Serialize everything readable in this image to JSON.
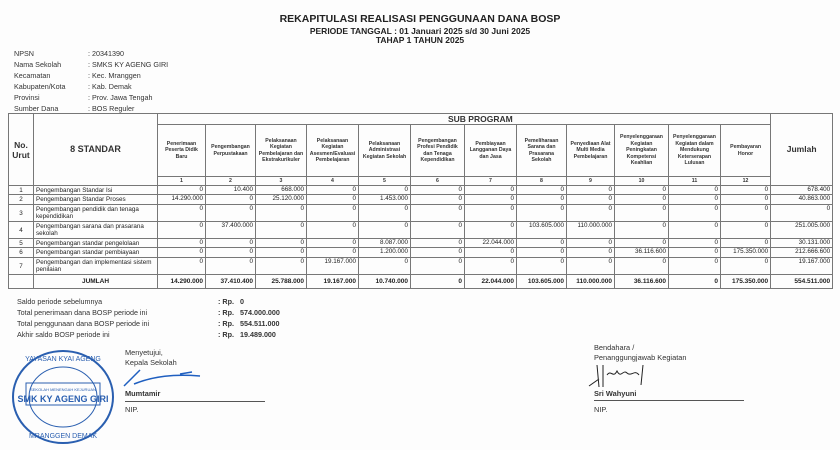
{
  "header": {
    "title": "REKAPITULASI REALISASI PENGGUNAAN DANA BOSP",
    "period": "PERIODE TANGGAL : 01 Januari 2025 s/d 30 Juni 2025",
    "stage": "TAHAP 1 TAHUN 2025"
  },
  "info": [
    {
      "label": "NPSN",
      "value": ": 20341390"
    },
    {
      "label": "Nama Sekolah",
      "value": ": SMKS KY AGENG GIRI"
    },
    {
      "label": "Kecamatan",
      "value": ": Kec. Mranggen"
    },
    {
      "label": "Kabupaten/Kota",
      "value": ": Kab. Demak"
    },
    {
      "label": "Provinsi",
      "value": ": Prov. Jawa Tengah"
    },
    {
      "label": "Sumber Dana",
      "value": ": BOS Reguler"
    }
  ],
  "table": {
    "no_header": "No. Urut",
    "standar_header": "8 STANDAR",
    "sub_program_header": "SUB PROGRAM",
    "jumlah_header": "Jumlah",
    "columns": [
      "Penerimaan Peserta Didik Baru",
      "Pengembangan Perpustakaan",
      "Pelaksanaan Kegiatan Pembelajaran dan Ekstrakurikuler",
      "Pelaksanaan Kegiatan Asesmen/Evaluasi Pembelajaran",
      "Pelaksanaan Administrasi Kegiatan Sekolah",
      "Pengembangan Profesi Pendidik dan Tenaga Kependidikan",
      "Pembiayaan Langganan Daya dan Jasa",
      "Pemeliharaan Sarana dan Prasarana Sekolah",
      "Penyediaan Alat Multi Media Pembelajaran",
      "Penyelenggaraan Kegiatan Peningkatan Kompetensi Keahlian",
      "Penyelenggaraan Kegiatan dalam Mendukung Keterserapan Lulusan",
      "Pembayaran Honor"
    ],
    "column_numbers": [
      "1",
      "2",
      "3",
      "4",
      "5",
      "6",
      "7",
      "8",
      "9",
      "10",
      "11",
      "12"
    ],
    "rows": [
      {
        "no": "1",
        "standar": "Pengembangan Standar Isi",
        "values": [
          "0",
          "10.400",
          "668.000",
          "0",
          "0",
          "0",
          "0",
          "0",
          "0",
          "0",
          "0",
          "0"
        ],
        "jumlah": "678.400"
      },
      {
        "no": "2",
        "standar": "Pengembangan Standar Proses",
        "values": [
          "14.290.000",
          "0",
          "25.120.000",
          "0",
          "1.453.000",
          "0",
          "0",
          "0",
          "0",
          "0",
          "0",
          "0"
        ],
        "jumlah": "40.863.000"
      },
      {
        "no": "3",
        "standar": "Pengembangan pendidik dan tenaga kependidikan",
        "values": [
          "0",
          "0",
          "0",
          "0",
          "0",
          "0",
          "0",
          "0",
          "0",
          "0",
          "0",
          "0"
        ],
        "jumlah": "0"
      },
      {
        "no": "4",
        "standar": "Pengembangan sarana dan prasarana sekolah",
        "values": [
          "0",
          "37.400.000",
          "0",
          "0",
          "0",
          "0",
          "0",
          "103.605.000",
          "110.000.000",
          "0",
          "0",
          "0"
        ],
        "jumlah": "251.005.000"
      },
      {
        "no": "5",
        "standar": "Pengembangan standar pengelolaan",
        "values": [
          "0",
          "0",
          "0",
          "0",
          "8.087.000",
          "0",
          "22.044.000",
          "0",
          "0",
          "0",
          "0",
          "0"
        ],
        "jumlah": "30.131.000"
      },
      {
        "no": "6",
        "standar": "Pengembangan standar pembiayaan",
        "values": [
          "0",
          "0",
          "0",
          "0",
          "1.200.000",
          "0",
          "0",
          "0",
          "0",
          "36.116.600",
          "0",
          "175.350.000"
        ],
        "jumlah": "212.666.600"
      },
      {
        "no": "7",
        "standar": "Pengembangan dan implementasi sistem penilaian",
        "values": [
          "0",
          "0",
          "0",
          "19.167.000",
          "0",
          "0",
          "0",
          "0",
          "0",
          "0",
          "0",
          "0"
        ],
        "jumlah": "19.167.000"
      }
    ],
    "total": {
      "label": "JUMLAH",
      "values": [
        "14.290.000",
        "37.410.400",
        "25.788.000",
        "19.167.000",
        "10.740.000",
        "0",
        "22.044.000",
        "103.605.000",
        "110.000.000",
        "36.116.600",
        "0",
        "175.350.000"
      ],
      "jumlah": "554.511.000"
    }
  },
  "summary": [
    {
      "label": "Saldo periode sebelumnya",
      "value": ": Rp.   0"
    },
    {
      "label": "Total penerimaan dana BOSP periode ini",
      "value": ": Rp.   574.000.000"
    },
    {
      "label": "Total penggunaan dana BOSP periode ini",
      "value": ": Rp.   554.511.000"
    },
    {
      "label": "Akhir saldo BOSP periode ini",
      "value": ": Rp.   19.489.000"
    }
  ],
  "signatures": {
    "left": {
      "approval": "Menyetujui,",
      "role": "Kepala Sekolah",
      "name": "Mumtamir",
      "nip": "NIP."
    },
    "right": {
      "role1": "Bendahara /",
      "role2": "Penanggungjawab Kegiatan",
      "name": "Sri Wahyuni",
      "nip": "NIP."
    },
    "stamp": {
      "outer_text": "YAYASAN KYAI AGENG GIRI · MRANGGEN DEMAK",
      "inner_text": "SMK KY AGENG GIRI",
      "inner_small": "SEKOLAH MENENGAH KEJURUAN",
      "color": "#2a5fb0"
    }
  }
}
